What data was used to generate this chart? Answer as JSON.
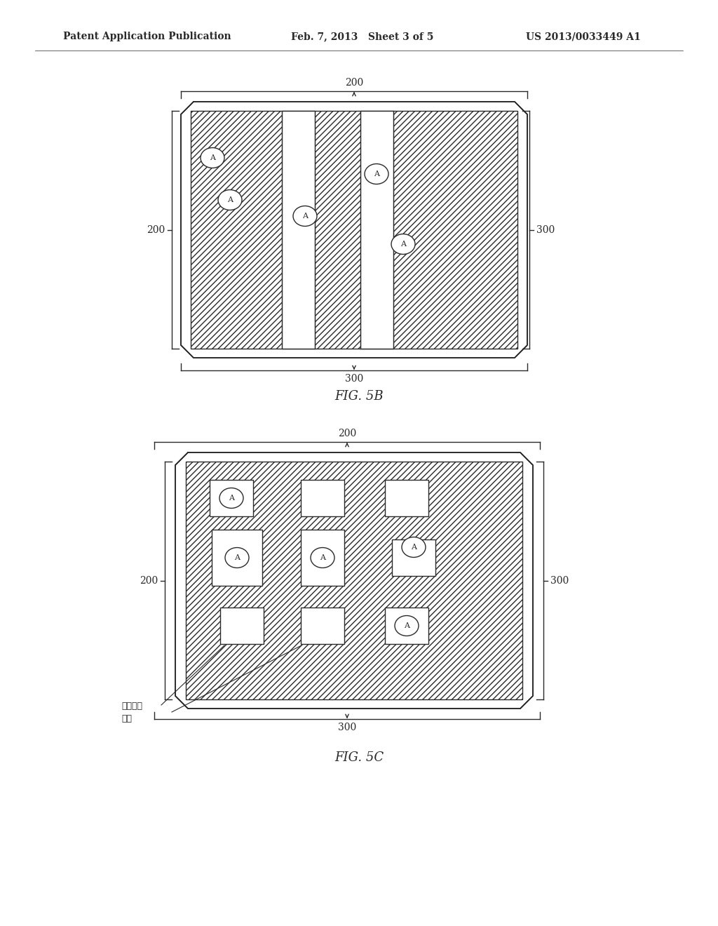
{
  "header_left": "Patent Application Publication",
  "header_mid": "Feb. 7, 2013   Sheet 3 of 5",
  "header_right": "US 2013/0033449 A1",
  "fig5b_label": "FIG. 5B",
  "fig5c_label": "FIG. 5C",
  "bg_color": "#ffffff",
  "line_color": "#2a2a2a",
  "label_200": "200",
  "label_300": "300",
  "chinese_label_line1": "初步位置",
  "chinese_label_line2": "区域"
}
